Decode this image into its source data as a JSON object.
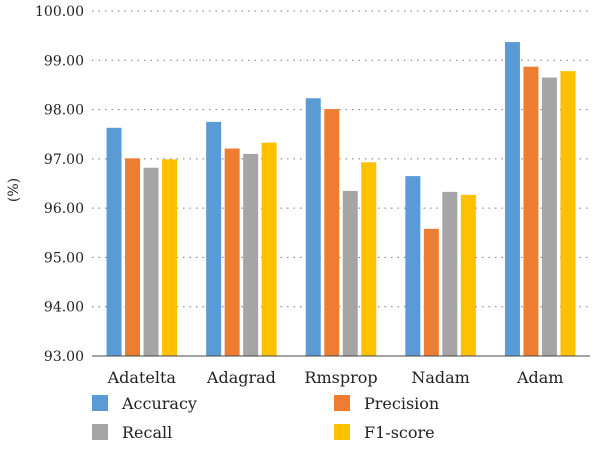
{
  "chart_data": {
    "type": "bar",
    "categories": [
      "Adatelta",
      "Adagrad",
      "Rmsprop",
      "Nadam",
      "Adam"
    ],
    "series": [
      {
        "name": "Accuracy",
        "color": "#5b9bd5",
        "values": [
          97.63,
          97.75,
          98.23,
          96.65,
          99.37
        ]
      },
      {
        "name": "Precision",
        "color": "#ed7d31",
        "values": [
          97.01,
          97.21,
          98.01,
          95.58,
          98.87
        ]
      },
      {
        "name": "Recall",
        "color": "#a5a5a5",
        "values": [
          96.82,
          97.1,
          96.35,
          96.33,
          98.65
        ]
      },
      {
        "name": "F1-score",
        "color": "#ffc000",
        "values": [
          96.99,
          97.33,
          96.93,
          96.27,
          98.78
        ]
      }
    ],
    "ylabel": "(%)",
    "ylim": [
      93.0,
      100.0
    ],
    "yticks": [
      "93.00",
      "94.00",
      "95.00",
      "96.00",
      "97.00",
      "98.00",
      "99.00",
      "100.00"
    ],
    "grid": "horizontal dotted",
    "legend": "bottom"
  }
}
